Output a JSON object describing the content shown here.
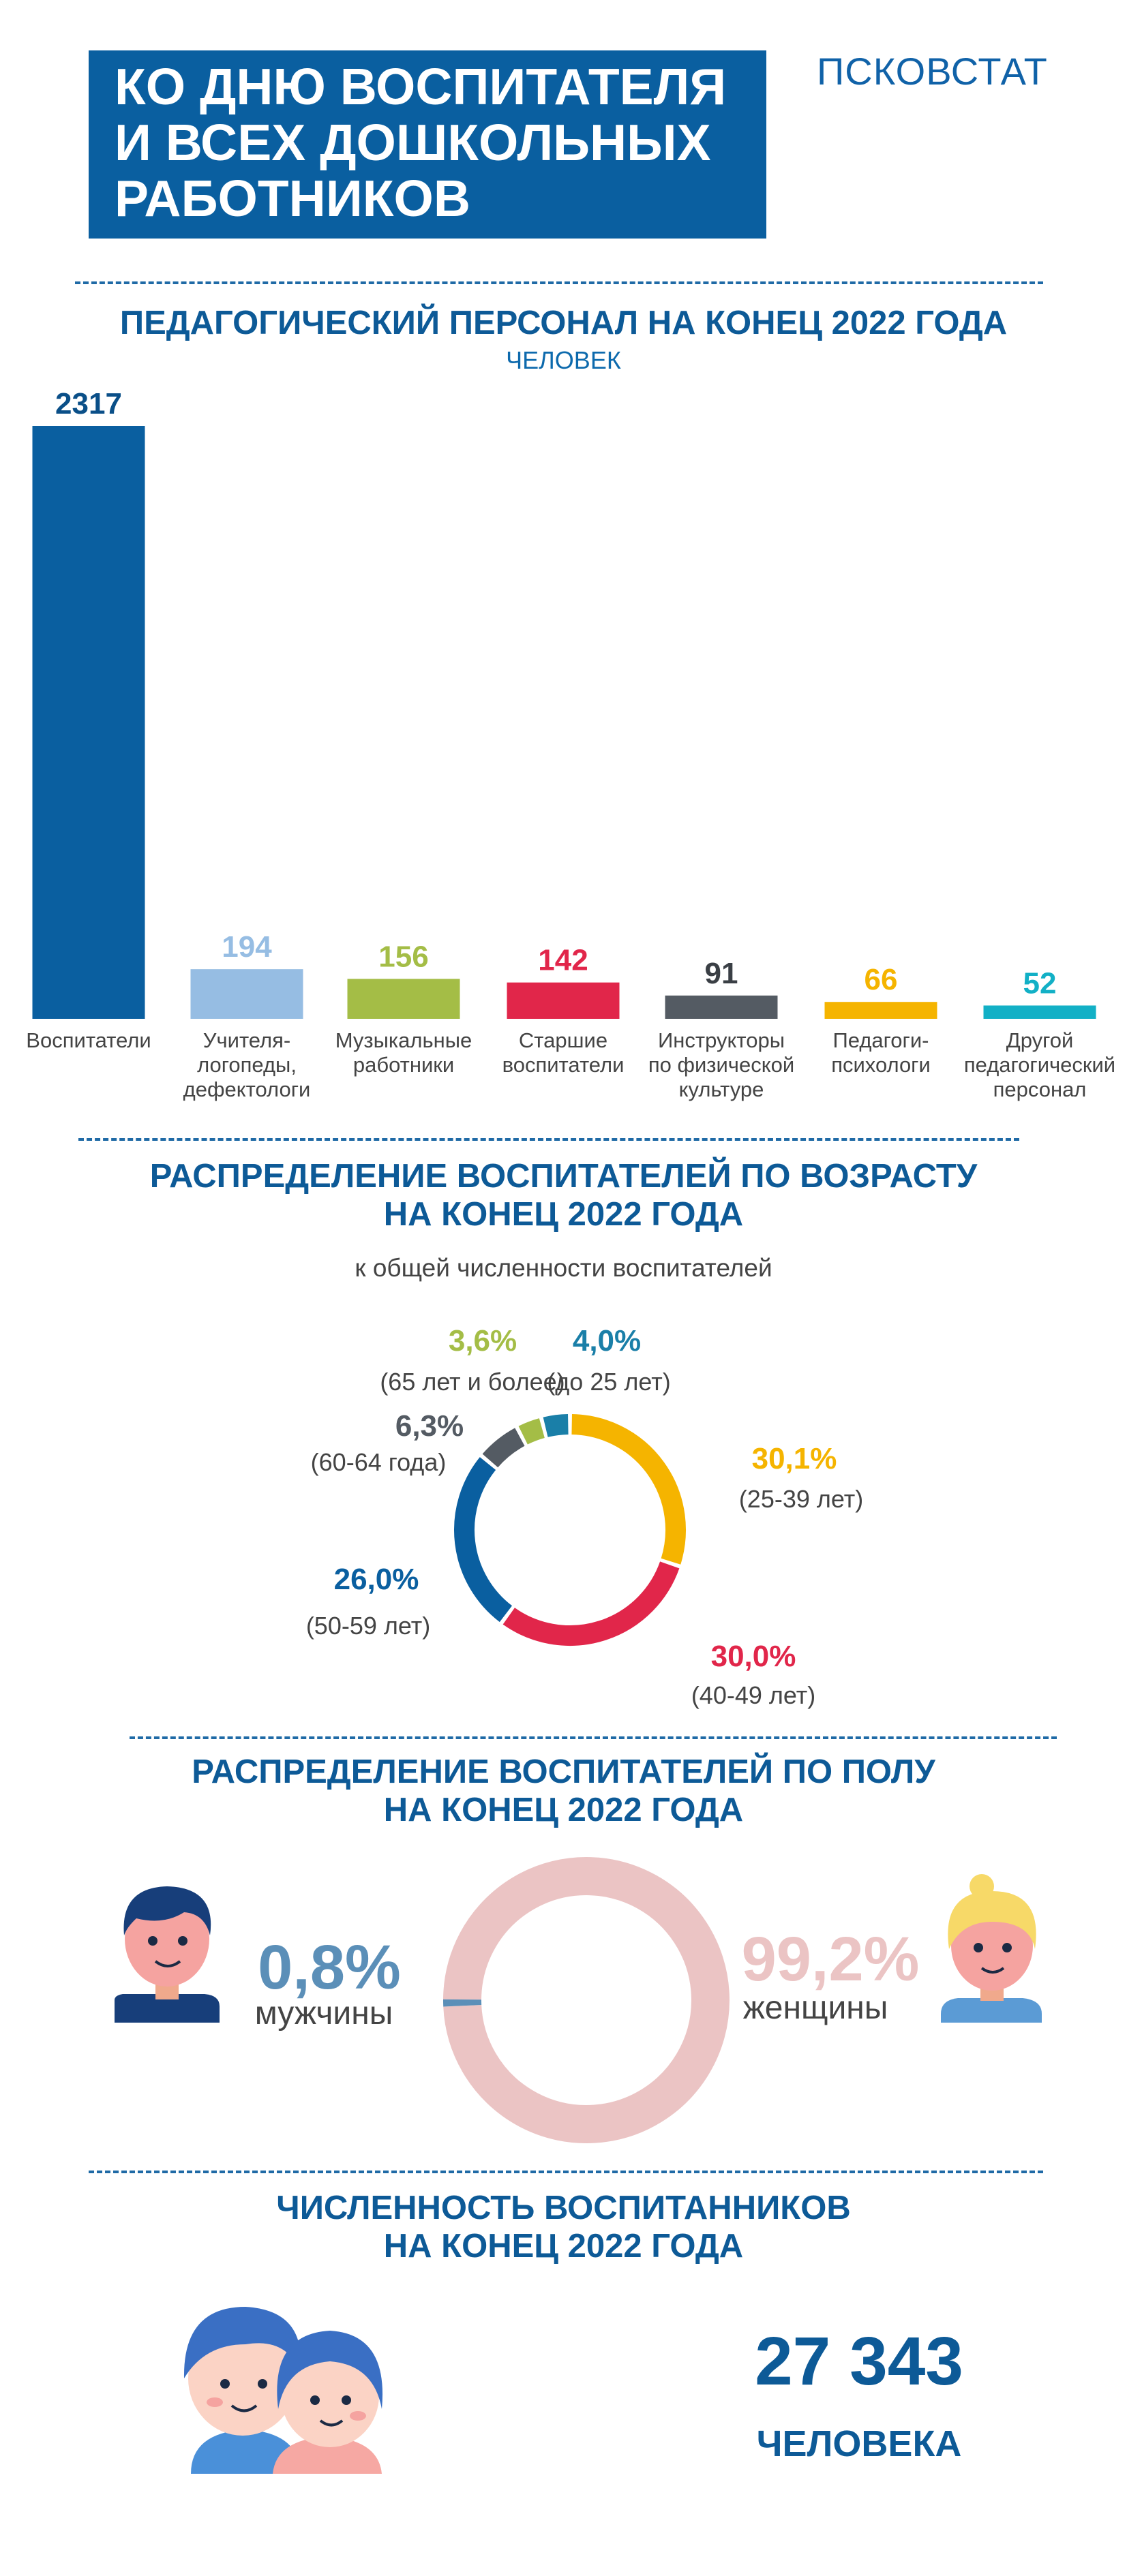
{
  "header": {
    "title": "КО ДНЮ ВОСПИТАТЕЛЯ\nИ ВСЕХ ДОШКОЛЬНЫХ\nРАБОТНИКОВ",
    "brand": "ПСКОВСТАТ"
  },
  "sections": {
    "staff_title": "ПЕДАГОГИЧЕСКИЙ ПЕРСОНАЛ НА КОНЕЦ 2022 ГОДА",
    "staff_unit": "ЧЕЛОВЕК",
    "age_title": "РАСПРЕДЕЛЕНИЕ ВОСПИТАТЕЛЕЙ ПО ВОЗРАСТУ\nНА КОНЕЦ 2022 ГОДА",
    "age_subtitle": "к общей численности воспитателей",
    "gender_title": "РАСПРЕДЕЛЕНИЕ ВОСПИТАТЕЛЕЙ ПО ПОЛУ\nНА КОНЕЦ 2022 ГОДА",
    "pupils_title": "ЧИСЛЕННОСТЬ ВОСПИТАННИКОВ\nНА КОНЕЦ 2022 ГОДА",
    "pupils_value": "27 343",
    "pupils_unit": "ЧЕЛОВЕКА"
  },
  "colors": {
    "primary": "#0a5fa0",
    "light_blue": "#96bde3",
    "green": "#a4bd46",
    "red": "#e1264a",
    "dark_gray": "#545b63",
    "yellow": "#f5b400",
    "teal": "#12b0c6",
    "pink": "#ebc4c4",
    "male": "#5b8fb8"
  },
  "chart_data": [
    {
      "type": "bar",
      "title": "ПЕДАГОГИЧЕСКИЙ ПЕРСОНАЛ НА КОНЕЦ 2022 ГОДА",
      "ylabel": "ЧЕЛОВЕК",
      "categories": [
        "Воспитатели",
        "Учителя-\nлогопеды,\nдефектологи",
        "Музыкальные\nработники",
        "Старшие\nвоспитатели",
        "Инструкторы\nпо физической\nкультуре",
        "Педагоги-\nпсихологи",
        "Другой\nпедагогический\nперсонал"
      ],
      "values": [
        2317,
        194,
        156,
        142,
        91,
        66,
        52
      ],
      "value_labels": [
        "2317",
        "194",
        "156",
        "142",
        "91",
        "66",
        "52"
      ],
      "colors": [
        "#0a5fa0",
        "#96bde3",
        "#a4bd46",
        "#e1264a",
        "#545b63",
        "#f5b400",
        "#12b0c6"
      ],
      "ylim": [
        0,
        2317
      ]
    },
    {
      "type": "pie",
      "title": "РАСПРЕДЕЛЕНИЕ ВОСПИТАТЕЛЕЙ ПО ВОЗРАСТУ НА КОНЕЦ 2022 ГОДА",
      "slices": [
        {
          "label": "(25-39 лет)",
          "value": 30.1,
          "text": "30,1%",
          "color": "#f5b400"
        },
        {
          "label": "(40-49 лет)",
          "value": 30.0,
          "text": "30,0%",
          "color": "#e1264a"
        },
        {
          "label": "(50-59 лет)",
          "value": 26.0,
          "text": "26,0%",
          "color": "#0a5fa0"
        },
        {
          "label": "(60-64 года)",
          "value": 6.3,
          "text": "6,3%",
          "color": "#545b63"
        },
        {
          "label": "(65 лет и более)",
          "value": 3.6,
          "text": "3,6%",
          "color": "#a4bd46"
        },
        {
          "label": "(до 25 лет)",
          "value": 4.0,
          "text": "4,0%",
          "color": "#1a7fa8"
        }
      ]
    },
    {
      "type": "pie",
      "title": "РАСПРЕДЕЛЕНИЕ ВОСПИТАТЕЛЕЙ ПО ПОЛУ НА КОНЕЦ 2022 ГОДА",
      "slices": [
        {
          "label": "мужчины",
          "value": 0.8,
          "text": "0,8%",
          "color": "#5b8fb8"
        },
        {
          "label": "женщины",
          "value": 99.2,
          "text": "99,2%",
          "color": "#ebc4c4"
        }
      ]
    }
  ]
}
